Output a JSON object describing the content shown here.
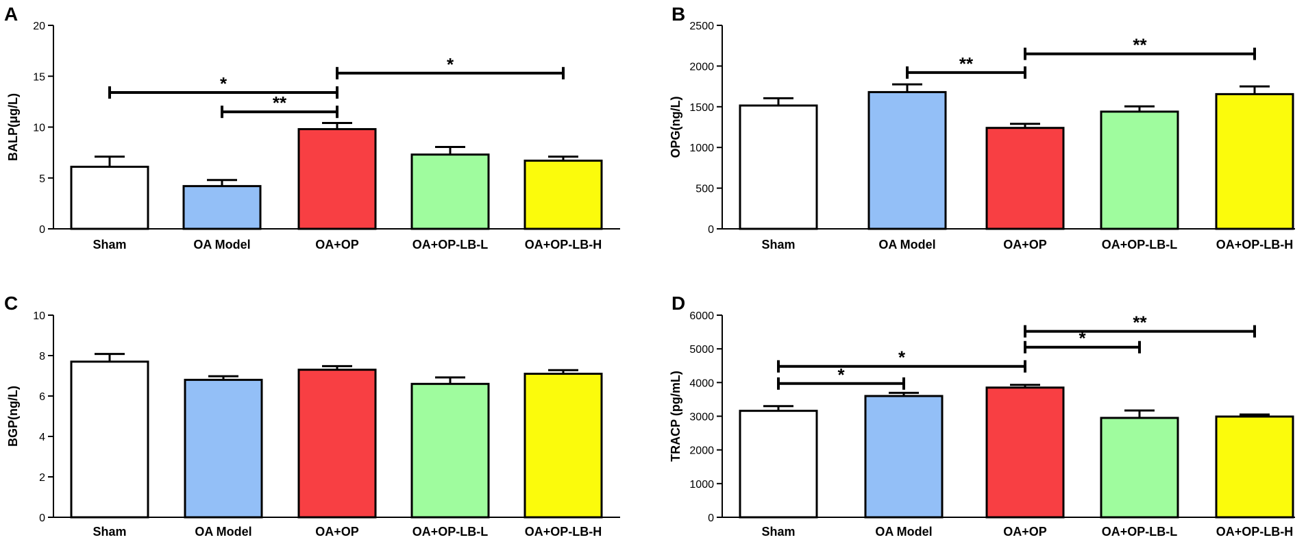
{
  "colors": {
    "sham": "#ffffff",
    "oa_model": "#93bff7",
    "oa_op": "#f83f43",
    "oa_op_lb_l": "#9ffc9e",
    "oa_op_lb_h": "#fbfb0c",
    "stroke": "#000000"
  },
  "chart_data": [
    {
      "type": "bar",
      "panel": "A",
      "ylabel": "BALP(μg/L)",
      "categories": [
        "Sham",
        "OA Model",
        "OA+OP",
        "OA+OP-LB-L",
        "OA+OP-LB-H"
      ],
      "values": [
        6.1,
        4.2,
        9.8,
        7.3,
        6.7
      ],
      "errors": [
        1.0,
        0.6,
        0.6,
        0.75,
        0.4
      ],
      "ylim": [
        0,
        20
      ],
      "yticks": [
        "0",
        "5",
        "10",
        "15",
        "20"
      ],
      "significance": [
        {
          "from": 0,
          "to": 2,
          "y": 13.4,
          "label": "*"
        },
        {
          "from": 1,
          "to": 2,
          "y": 11.5,
          "label": "**"
        },
        {
          "from": 2,
          "to": 4,
          "y": 15.3,
          "label": "*"
        }
      ]
    },
    {
      "type": "bar",
      "panel": "B",
      "ylabel": "OPG(ng/L)",
      "categories": [
        "Sham",
        "OA Model",
        "OA+OP",
        "OA+OP-LB-L",
        "OA+OP-LB-H"
      ],
      "values": [
        1515,
        1680,
        1240,
        1440,
        1655
      ],
      "errors": [
        90,
        95,
        50,
        65,
        95
      ],
      "ylim": [
        0,
        2500
      ],
      "yticks": [
        "0",
        "500",
        "1000",
        "1500",
        "2000",
        "2500"
      ],
      "significance": [
        {
          "from": 1,
          "to": 2,
          "y": 1920,
          "label": "**"
        },
        {
          "from": 2,
          "to": 4,
          "y": 2150,
          "label": "**"
        }
      ]
    },
    {
      "type": "bar",
      "panel": "C",
      "ylabel": "BGP(ng/L)",
      "categories": [
        "Sham",
        "OA Model",
        "OA+OP",
        "OA+OP-LB-L",
        "OA+OP-LB-H"
      ],
      "values": [
        7.7,
        6.8,
        7.3,
        6.6,
        7.1
      ],
      "errors": [
        0.38,
        0.18,
        0.18,
        0.32,
        0.18
      ],
      "ylim": [
        0,
        10
      ],
      "yticks": [
        "0",
        "2",
        "4",
        "6",
        "8",
        "10"
      ],
      "significance": []
    },
    {
      "type": "bar",
      "panel": "D",
      "ylabel": "TRACP (pg/mL)",
      "categories": [
        "Sham",
        "OA Model",
        "OA+OP",
        "OA+OP-LB-L",
        "OA+OP-LB-H"
      ],
      "values": [
        3160,
        3600,
        3850,
        2950,
        2990
      ],
      "errors": [
        140,
        95,
        80,
        220,
        60
      ],
      "ylim": [
        0,
        6000
      ],
      "yticks": [
        "0",
        "1000",
        "2000",
        "3000",
        "4000",
        "5000",
        "6000"
      ],
      "significance": [
        {
          "from": 0,
          "to": 1,
          "y": 3970,
          "label": "*"
        },
        {
          "from": 0,
          "to": 2,
          "y": 4480,
          "label": "*"
        },
        {
          "from": 2,
          "to": 3,
          "y": 5050,
          "label": "*"
        },
        {
          "from": 2,
          "to": 4,
          "y": 5520,
          "label": "**"
        }
      ]
    }
  ]
}
